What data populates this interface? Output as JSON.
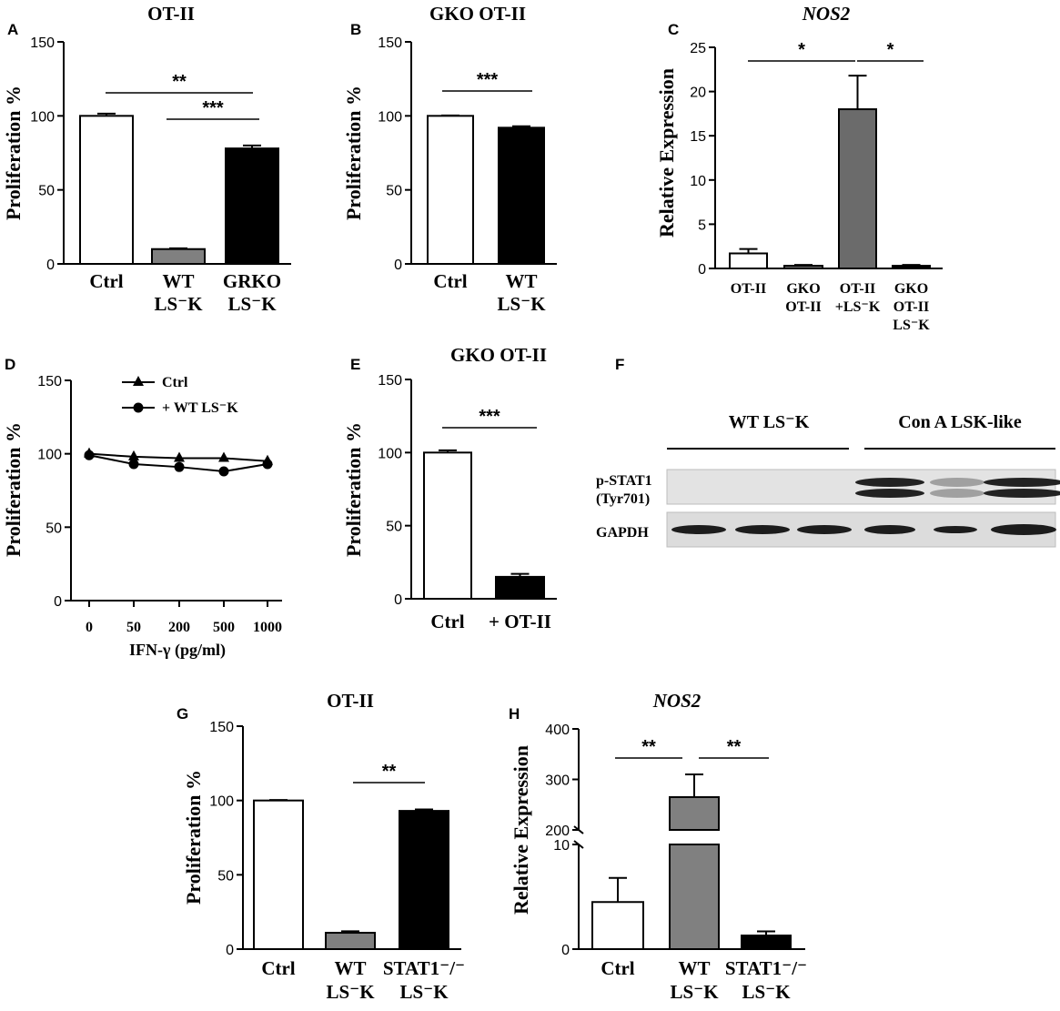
{
  "chart_data": [
    {
      "panel": "A",
      "title": "OT-II",
      "type": "bar",
      "ylabel": "Proliferation %",
      "ylim": [
        0,
        150
      ],
      "yticks": [
        0,
        50,
        100,
        150
      ],
      "categories": [
        [
          "Ctrl"
        ],
        [
          "WT",
          "LS⁻K"
        ],
        [
          "GRKO",
          "LS⁻K"
        ]
      ],
      "values": [
        100,
        10,
        78
      ],
      "errors": [
        1.5,
        0.5,
        2
      ],
      "bar_colors": [
        "#ffffff",
        "#808080",
        "#000000"
      ],
      "significance": [
        {
          "from": 0,
          "to": 2,
          "label": "**"
        },
        {
          "from": 1,
          "to": 2,
          "label": "***"
        }
      ]
    },
    {
      "panel": "B",
      "title": "GKO OT-II",
      "type": "bar",
      "ylabel": "Proliferation %",
      "ylim": [
        0,
        150
      ],
      "yticks": [
        0,
        50,
        100,
        150
      ],
      "categories": [
        [
          "Ctrl"
        ],
        [
          "WT",
          "LS⁻K"
        ]
      ],
      "values": [
        100,
        92
      ],
      "errors": [
        0.3,
        1
      ],
      "bar_colors": [
        "#ffffff",
        "#000000"
      ],
      "significance": [
        {
          "from": 0,
          "to": 1,
          "label": "***"
        }
      ]
    },
    {
      "panel": "C",
      "title": "NOS2",
      "type": "bar",
      "ylabel": "Relative Expression",
      "ylim": [
        0,
        25
      ],
      "yticks": [
        0,
        5,
        10,
        15,
        20,
        25
      ],
      "categories": [
        [
          "OT-II"
        ],
        [
          "GKO",
          "OT-II"
        ],
        [
          "OT-II",
          "+LS⁻K"
        ],
        [
          "GKO",
          "OT-II",
          "LS⁻K"
        ]
      ],
      "values": [
        1.7,
        0.3,
        18,
        0.3
      ],
      "errors": [
        0.5,
        0.1,
        3.8,
        0.1
      ],
      "bar_colors": [
        "#ffffff",
        "#808080",
        "#6b6b6b",
        "#000000"
      ],
      "significance": [
        {
          "from": 0,
          "to": 2,
          "label": "*"
        },
        {
          "from": 2,
          "to": 3,
          "label": "*"
        }
      ]
    },
    {
      "panel": "D",
      "type": "line",
      "ylabel": "Proliferation %",
      "xlabel": "IFN-γ (pg/ml)",
      "ylim": [
        0,
        150
      ],
      "yticks": [
        0,
        50,
        100,
        150
      ],
      "x": [
        "0",
        "50",
        "200",
        "500",
        "1000"
      ],
      "series": [
        {
          "name": "Ctrl",
          "marker": "triangle",
          "values": [
            100,
            98,
            97,
            97,
            95
          ]
        },
        {
          "name": "+ WT LS⁻K",
          "marker": "circle",
          "values": [
            99,
            93,
            91,
            88,
            93
          ]
        }
      ]
    },
    {
      "panel": "E",
      "title": "GKO OT-II",
      "type": "bar",
      "ylabel": "Proliferation %",
      "ylim": [
        0,
        150
      ],
      "yticks": [
        0,
        50,
        100,
        150
      ],
      "categories": [
        [
          "Ctrl"
        ],
        [
          "+ OT-II"
        ]
      ],
      "values": [
        100,
        15
      ],
      "errors": [
        1.5,
        2
      ],
      "bar_colors": [
        "#ffffff",
        "#000000"
      ],
      "significance": [
        {
          "from": 0,
          "to": 1,
          "label": "***"
        }
      ]
    },
    {
      "panel": "G",
      "title": "OT-II",
      "type": "bar",
      "ylabel": "Proliferation %",
      "ylim": [
        0,
        150
      ],
      "yticks": [
        0,
        50,
        100,
        150
      ],
      "categories": [
        [
          "Ctrl"
        ],
        [
          "WT",
          "LS⁻K"
        ],
        [
          "STAT1⁻/⁻",
          "LS⁻K"
        ]
      ],
      "values": [
        100,
        11,
        93
      ],
      "errors": [
        0.3,
        1,
        1
      ],
      "bar_colors": [
        "#ffffff",
        "#808080",
        "#000000"
      ],
      "significance": [
        {
          "from": 1,
          "to": 2,
          "label": "**"
        }
      ]
    },
    {
      "panel": "H",
      "title": "NOS2",
      "type": "bar",
      "ylabel": "Relative Expression",
      "axis_break": true,
      "ylim_lower": [
        0,
        10
      ],
      "ylim_upper": [
        200,
        400
      ],
      "yticks_lower": [
        0,
        10
      ],
      "yticks_upper": [
        200,
        300,
        400
      ],
      "categories": [
        [
          "Ctrl"
        ],
        [
          "WT",
          "LS⁻K"
        ],
        [
          "STAT1⁻/⁻",
          "LS⁻K"
        ]
      ],
      "values": [
        4.5,
        265,
        1.3
      ],
      "errors": [
        2.3,
        45,
        0.4
      ],
      "bar_colors": [
        "#ffffff",
        "#808080",
        "#000000"
      ],
      "significance": [
        {
          "from": 0,
          "to": 1,
          "label": "**"
        },
        {
          "from": 1,
          "to": 2,
          "label": "**"
        }
      ]
    }
  ],
  "blot": {
    "panel": "F",
    "groups": [
      "WT LS⁻K",
      "Con A LSK-like"
    ],
    "rows": [
      "p-STAT1",
      "(Tyr701)",
      "GAPDH"
    ]
  },
  "letters": [
    "A",
    "B",
    "C",
    "D",
    "E",
    "F",
    "G",
    "H"
  ]
}
